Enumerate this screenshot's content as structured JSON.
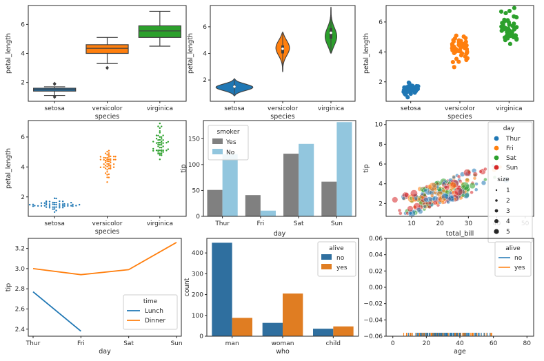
{
  "chart_data": [
    {
      "type": "box",
      "xlabel": "species",
      "ylabel": "petal_length",
      "categories": [
        "setosa",
        "versicolor",
        "virginica"
      ],
      "yticks": [
        2,
        4,
        6
      ],
      "ylim": [
        0.7,
        7.3
      ],
      "colors": [
        "#1f77b4",
        "#ff7f0e",
        "#2ca02c"
      ],
      "stats": [
        {
          "q1": 1.4,
          "median": 1.5,
          "q3": 1.6,
          "lo": 1.1,
          "hi": 1.7,
          "fliers": [
            1.0,
            1.9,
            1.9
          ]
        },
        {
          "q1": 4.0,
          "median": 4.35,
          "q3": 4.6,
          "lo": 3.3,
          "hi": 5.1,
          "fliers": [
            3.0
          ]
        },
        {
          "q1": 5.1,
          "median": 5.55,
          "q3": 5.9,
          "lo": 4.5,
          "hi": 6.9,
          "fliers": []
        }
      ]
    },
    {
      "type": "violin",
      "xlabel": "species",
      "ylabel": "petal_length",
      "categories": [
        "setosa",
        "versicolor",
        "virginica"
      ],
      "yticks": [
        2,
        4,
        6
      ],
      "ylim": [
        0.4,
        7.6
      ],
      "colors": [
        "#1f77b4",
        "#ff7f0e",
        "#2ca02c"
      ],
      "violins": [
        {
          "min": 0.8,
          "max": 2.1,
          "mode": 1.45,
          "width": 0.85,
          "median": 1.5,
          "q1": 1.4,
          "q3": 1.6
        },
        {
          "min": 2.6,
          "max": 5.6,
          "mode": 4.45,
          "width": 0.32,
          "median": 4.35,
          "q1": 4.0,
          "q3": 4.6
        },
        {
          "min": 4.0,
          "max": 7.5,
          "mode": 5.2,
          "width": 0.28,
          "median": 5.55,
          "q1": 5.1,
          "q3": 5.9
        }
      ]
    },
    {
      "type": "strip",
      "xlabel": "species",
      "ylabel": "petal_length",
      "categories": [
        "setosa",
        "versicolor",
        "virginica"
      ],
      "yticks": [
        2,
        4,
        6
      ],
      "ylim": [
        0.7,
        7.1
      ],
      "colors": [
        "#1f77b4",
        "#ff7f0e",
        "#2ca02c"
      ],
      "values": [
        [
          1.4,
          1.4,
          1.3,
          1.5,
          1.4,
          1.7,
          1.4,
          1.5,
          1.4,
          1.5,
          1.5,
          1.6,
          1.4,
          1.1,
          1.2,
          1.5,
          1.3,
          1.4,
          1.7,
          1.5,
          1.7,
          1.5,
          1.0,
          1.7,
          1.9,
          1.6,
          1.6,
          1.5,
          1.4,
          1.6,
          1.6,
          1.5,
          1.5,
          1.4,
          1.5,
          1.2,
          1.3,
          1.4,
          1.3,
          1.5,
          1.3,
          1.3,
          1.3,
          1.6,
          1.9,
          1.4,
          1.6,
          1.4,
          1.5,
          1.4
        ],
        [
          4.7,
          4.5,
          4.9,
          4.0,
          4.6,
          4.5,
          4.7,
          3.3,
          4.6,
          3.9,
          3.5,
          4.2,
          4.0,
          4.7,
          3.6,
          4.4,
          4.5,
          4.1,
          4.5,
          3.9,
          4.8,
          4.0,
          4.9,
          4.7,
          4.3,
          4.4,
          4.8,
          5.0,
          4.5,
          3.5,
          3.8,
          3.7,
          3.9,
          5.1,
          4.5,
          4.5,
          4.7,
          4.4,
          4.1,
          4.0,
          4.4,
          4.6,
          4.0,
          3.3,
          4.2,
          4.2,
          4.2,
          4.3,
          3.0,
          4.1
        ],
        [
          6.0,
          5.1,
          5.9,
          5.6,
          5.8,
          6.6,
          4.5,
          6.3,
          5.8,
          6.1,
          5.1,
          5.3,
          5.5,
          5.0,
          5.1,
          5.3,
          5.5,
          6.7,
          6.9,
          5.0,
          5.7,
          4.9,
          6.7,
          4.9,
          5.7,
          6.0,
          4.8,
          4.9,
          5.6,
          5.8,
          6.1,
          6.4,
          5.6,
          5.1,
          5.6,
          6.1,
          5.6,
          5.5,
          4.8,
          5.4,
          5.6,
          5.1,
          5.1,
          5.9,
          5.7,
          5.2,
          5.0,
          5.2,
          5.4,
          5.1
        ]
      ]
    },
    {
      "type": "swarm",
      "xlabel": "species",
      "ylabel": "petal_length",
      "categories": [
        "setosa",
        "versicolor",
        "virginica"
      ],
      "yticks": [
        2,
        4,
        6
      ],
      "ylim": [
        0.7,
        7.1
      ],
      "colors": [
        "#1f77b4",
        "#ff7f0e",
        "#2ca02c"
      ],
      "series_ref": "same values as strip plot"
    },
    {
      "type": "bar",
      "xlabel": "day",
      "ylabel": "tip",
      "categories": [
        "Thur",
        "Fri",
        "Sat",
        "Sun"
      ],
      "yticks": [
        0,
        50,
        100,
        150
      ],
      "ylim": [
        0,
        185
      ],
      "legend": {
        "title": "smoker",
        "position": "top-left"
      },
      "series": [
        {
          "name": "Yes",
          "color": "#808080",
          "values": [
            51,
            41,
            121,
            67
          ]
        },
        {
          "name": "No",
          "color": "#92c6de",
          "values": [
            120,
            11,
            140,
            182
          ]
        }
      ]
    },
    {
      "type": "scatter",
      "xlabel": "total_bill",
      "ylabel": "tip",
      "xticks": [
        10,
        20,
        30,
        40,
        50
      ],
      "xlim": [
        1,
        53
      ],
      "yticks": [
        2,
        4,
        6,
        8,
        10
      ],
      "ylim": [
        0.7,
        10.4
      ],
      "legend": {
        "title": "day",
        "position": "top-right",
        "hue": [
          {
            "label": "Thur",
            "color": "#1f77b4"
          },
          {
            "label": "Fri",
            "color": "#ff7f0e"
          },
          {
            "label": "Sat",
            "color": "#2ca02c"
          },
          {
            "label": "Sun",
            "color": "#d62728"
          }
        ],
        "size_title": "size",
        "sizes": [
          "1",
          "2",
          "3",
          "4",
          "5"
        ]
      }
    },
    {
      "type": "line",
      "xlabel": "day",
      "ylabel": "tip",
      "categories": [
        "Thur",
        "Fri",
        "Sat",
        "Sun"
      ],
      "yticks": [
        2.4,
        2.6,
        2.8,
        3.0,
        3.2
      ],
      "ylim": [
        2.33,
        3.3
      ],
      "legend": {
        "title": "time",
        "position": "bottom-right"
      },
      "series": [
        {
          "name": "Lunch",
          "color": "#1f77b4",
          "values": [
            2.77,
            2.38,
            null,
            null
          ]
        },
        {
          "name": "Dinner",
          "color": "#ff7f0e",
          "values": [
            3.0,
            2.94,
            2.99,
            3.26
          ]
        }
      ]
    },
    {
      "type": "bar",
      "xlabel": "who",
      "ylabel": "count",
      "categories": [
        "man",
        "woman",
        "child"
      ],
      "yticks": [
        0,
        100,
        200,
        300,
        400
      ],
      "ylim": [
        0,
        470
      ],
      "legend": {
        "title": "alive",
        "position": "top-right"
      },
      "series": [
        {
          "name": "no",
          "color": "#2f6f9f",
          "values": [
            449,
            64,
            36
          ]
        },
        {
          "name": "yes",
          "color": "#e07d22",
          "values": [
            88,
            205,
            47
          ]
        }
      ]
    },
    {
      "type": "rug",
      "xlabel": "age",
      "ylabel": "",
      "xticks": [
        0,
        20,
        40,
        60,
        80
      ],
      "xlim": [
        -4,
        84
      ],
      "yticks": [
        -0.06,
        -0.04,
        -0.02,
        0.0,
        0.02,
        0.04,
        0.06
      ],
      "ylim": [
        -0.06,
        0.06
      ],
      "ytick_labels": [
        "−0.06",
        "−0.04",
        "−0.02",
        "0.00",
        "0.02",
        "0.04",
        "0.06"
      ],
      "legend": {
        "title": "alive",
        "position": "top-right"
      },
      "series": [
        {
          "name": "no",
          "color": "#1f77b4"
        },
        {
          "name": "yes",
          "color": "#ff7f0e"
        }
      ]
    }
  ]
}
